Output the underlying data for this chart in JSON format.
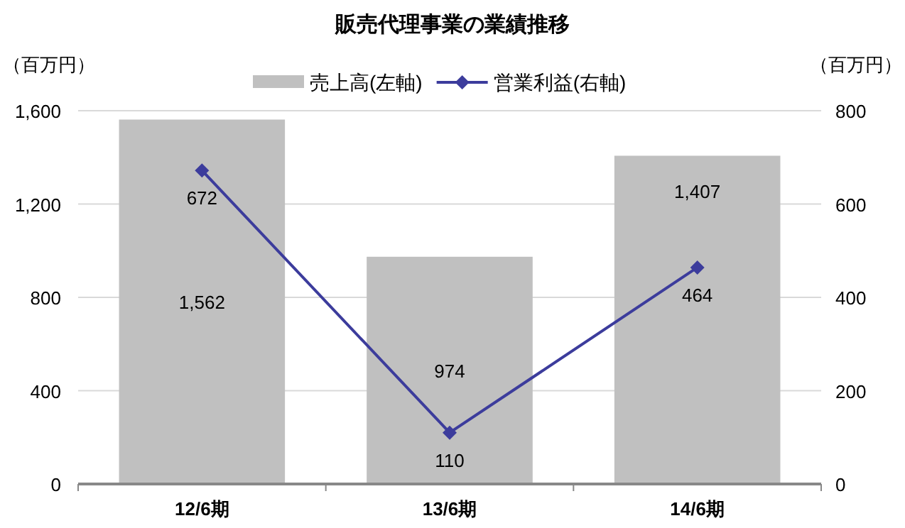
{
  "chart_data": {
    "type": "bar",
    "title": "販売代理事業の業績推移",
    "ylabel": "（百万円）",
    "y2label": "（百万円）",
    "categories": [
      "12/6期",
      "13/6期",
      "14/6期"
    ],
    "series": [
      {
        "name": "売上高(左軸)",
        "color": "#c0c0c0",
        "values": [
          1562,
          974,
          1407
        ],
        "value_labels": [
          "1,562",
          "974",
          "1,407"
        ]
      },
      {
        "name": "営業利益(右軸)",
        "type": "line",
        "axis": "y2",
        "color": "#3c3c9c",
        "marker": "diamond",
        "values": [
          672,
          110,
          464
        ],
        "value_labels": [
          "672",
          "110",
          "464"
        ]
      }
    ],
    "ylim": [
      0,
      1600
    ],
    "yticks": [
      0,
      {
        "value": 400,
        "label": "400"
      },
      {
        "value": 800,
        "label": "800"
      },
      {
        "value": 1200,
        "label": "1,200"
      },
      {
        "value": 1600,
        "label": "1,600"
      }
    ],
    "y2lim": [
      0,
      800
    ],
    "y2ticks": [
      0,
      200,
      400,
      600,
      800
    ],
    "grid": "y",
    "legend": "top"
  }
}
